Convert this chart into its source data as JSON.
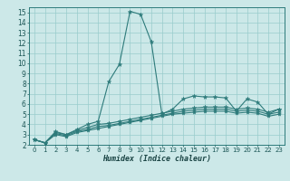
{
  "xlabel": "Humidex (Indice chaleur)",
  "bg_color": "#cce8e8",
  "line_color": "#2e7b7b",
  "grid_color": "#99cccc",
  "xlim": [
    -0.5,
    23.5
  ],
  "ylim": [
    2,
    15.5
  ],
  "xticks": [
    0,
    1,
    2,
    3,
    4,
    5,
    6,
    7,
    8,
    9,
    10,
    11,
    12,
    13,
    14,
    15,
    16,
    17,
    18,
    19,
    20,
    21,
    22,
    23
  ],
  "yticks": [
    2,
    3,
    4,
    5,
    6,
    7,
    8,
    9,
    10,
    11,
    12,
    13,
    14,
    15
  ],
  "line1_x": [
    0,
    1,
    2,
    3,
    4,
    5,
    6,
    7,
    8,
    9,
    10,
    11,
    12,
    13,
    14,
    15,
    16,
    17,
    18,
    19,
    20,
    21,
    22,
    23
  ],
  "line1_y": [
    2.5,
    2.2,
    3.3,
    3.0,
    3.5,
    4.0,
    4.3,
    8.2,
    9.9,
    15.1,
    14.8,
    12.1,
    5.0,
    5.5,
    6.5,
    6.8,
    6.7,
    6.7,
    6.6,
    5.3,
    6.5,
    6.2,
    5.0,
    5.5
  ],
  "line2_x": [
    0,
    1,
    2,
    3,
    4,
    5,
    6,
    7,
    8,
    9,
    10,
    11,
    12,
    13,
    14,
    15,
    16,
    17,
    18,
    19,
    20,
    21,
    22,
    23
  ],
  "line2_y": [
    2.5,
    2.2,
    3.2,
    3.0,
    3.4,
    3.7,
    4.0,
    4.1,
    4.3,
    4.5,
    4.7,
    4.9,
    5.1,
    5.3,
    5.5,
    5.6,
    5.7,
    5.7,
    5.7,
    5.5,
    5.6,
    5.5,
    5.2,
    5.5
  ],
  "line3_x": [
    0,
    1,
    2,
    3,
    4,
    5,
    6,
    7,
    8,
    9,
    10,
    11,
    12,
    13,
    14,
    15,
    16,
    17,
    18,
    19,
    20,
    21,
    22,
    23
  ],
  "line3_y": [
    2.5,
    2.2,
    3.1,
    2.9,
    3.3,
    3.5,
    3.8,
    3.9,
    4.1,
    4.3,
    4.5,
    4.7,
    4.9,
    5.1,
    5.3,
    5.4,
    5.5,
    5.5,
    5.5,
    5.3,
    5.4,
    5.3,
    5.0,
    5.2
  ],
  "line4_x": [
    0,
    1,
    2,
    3,
    4,
    5,
    6,
    7,
    8,
    9,
    10,
    11,
    12,
    13,
    14,
    15,
    16,
    17,
    18,
    19,
    20,
    21,
    22,
    23
  ],
  "line4_y": [
    2.5,
    2.2,
    3.0,
    2.8,
    3.2,
    3.4,
    3.6,
    3.8,
    4.0,
    4.2,
    4.4,
    4.6,
    4.8,
    5.0,
    5.1,
    5.2,
    5.3,
    5.3,
    5.3,
    5.1,
    5.2,
    5.1,
    4.8,
    5.0
  ],
  "tick_fontsize": 5.0,
  "xlabel_fontsize": 6.0,
  "marker_size": 3.5
}
